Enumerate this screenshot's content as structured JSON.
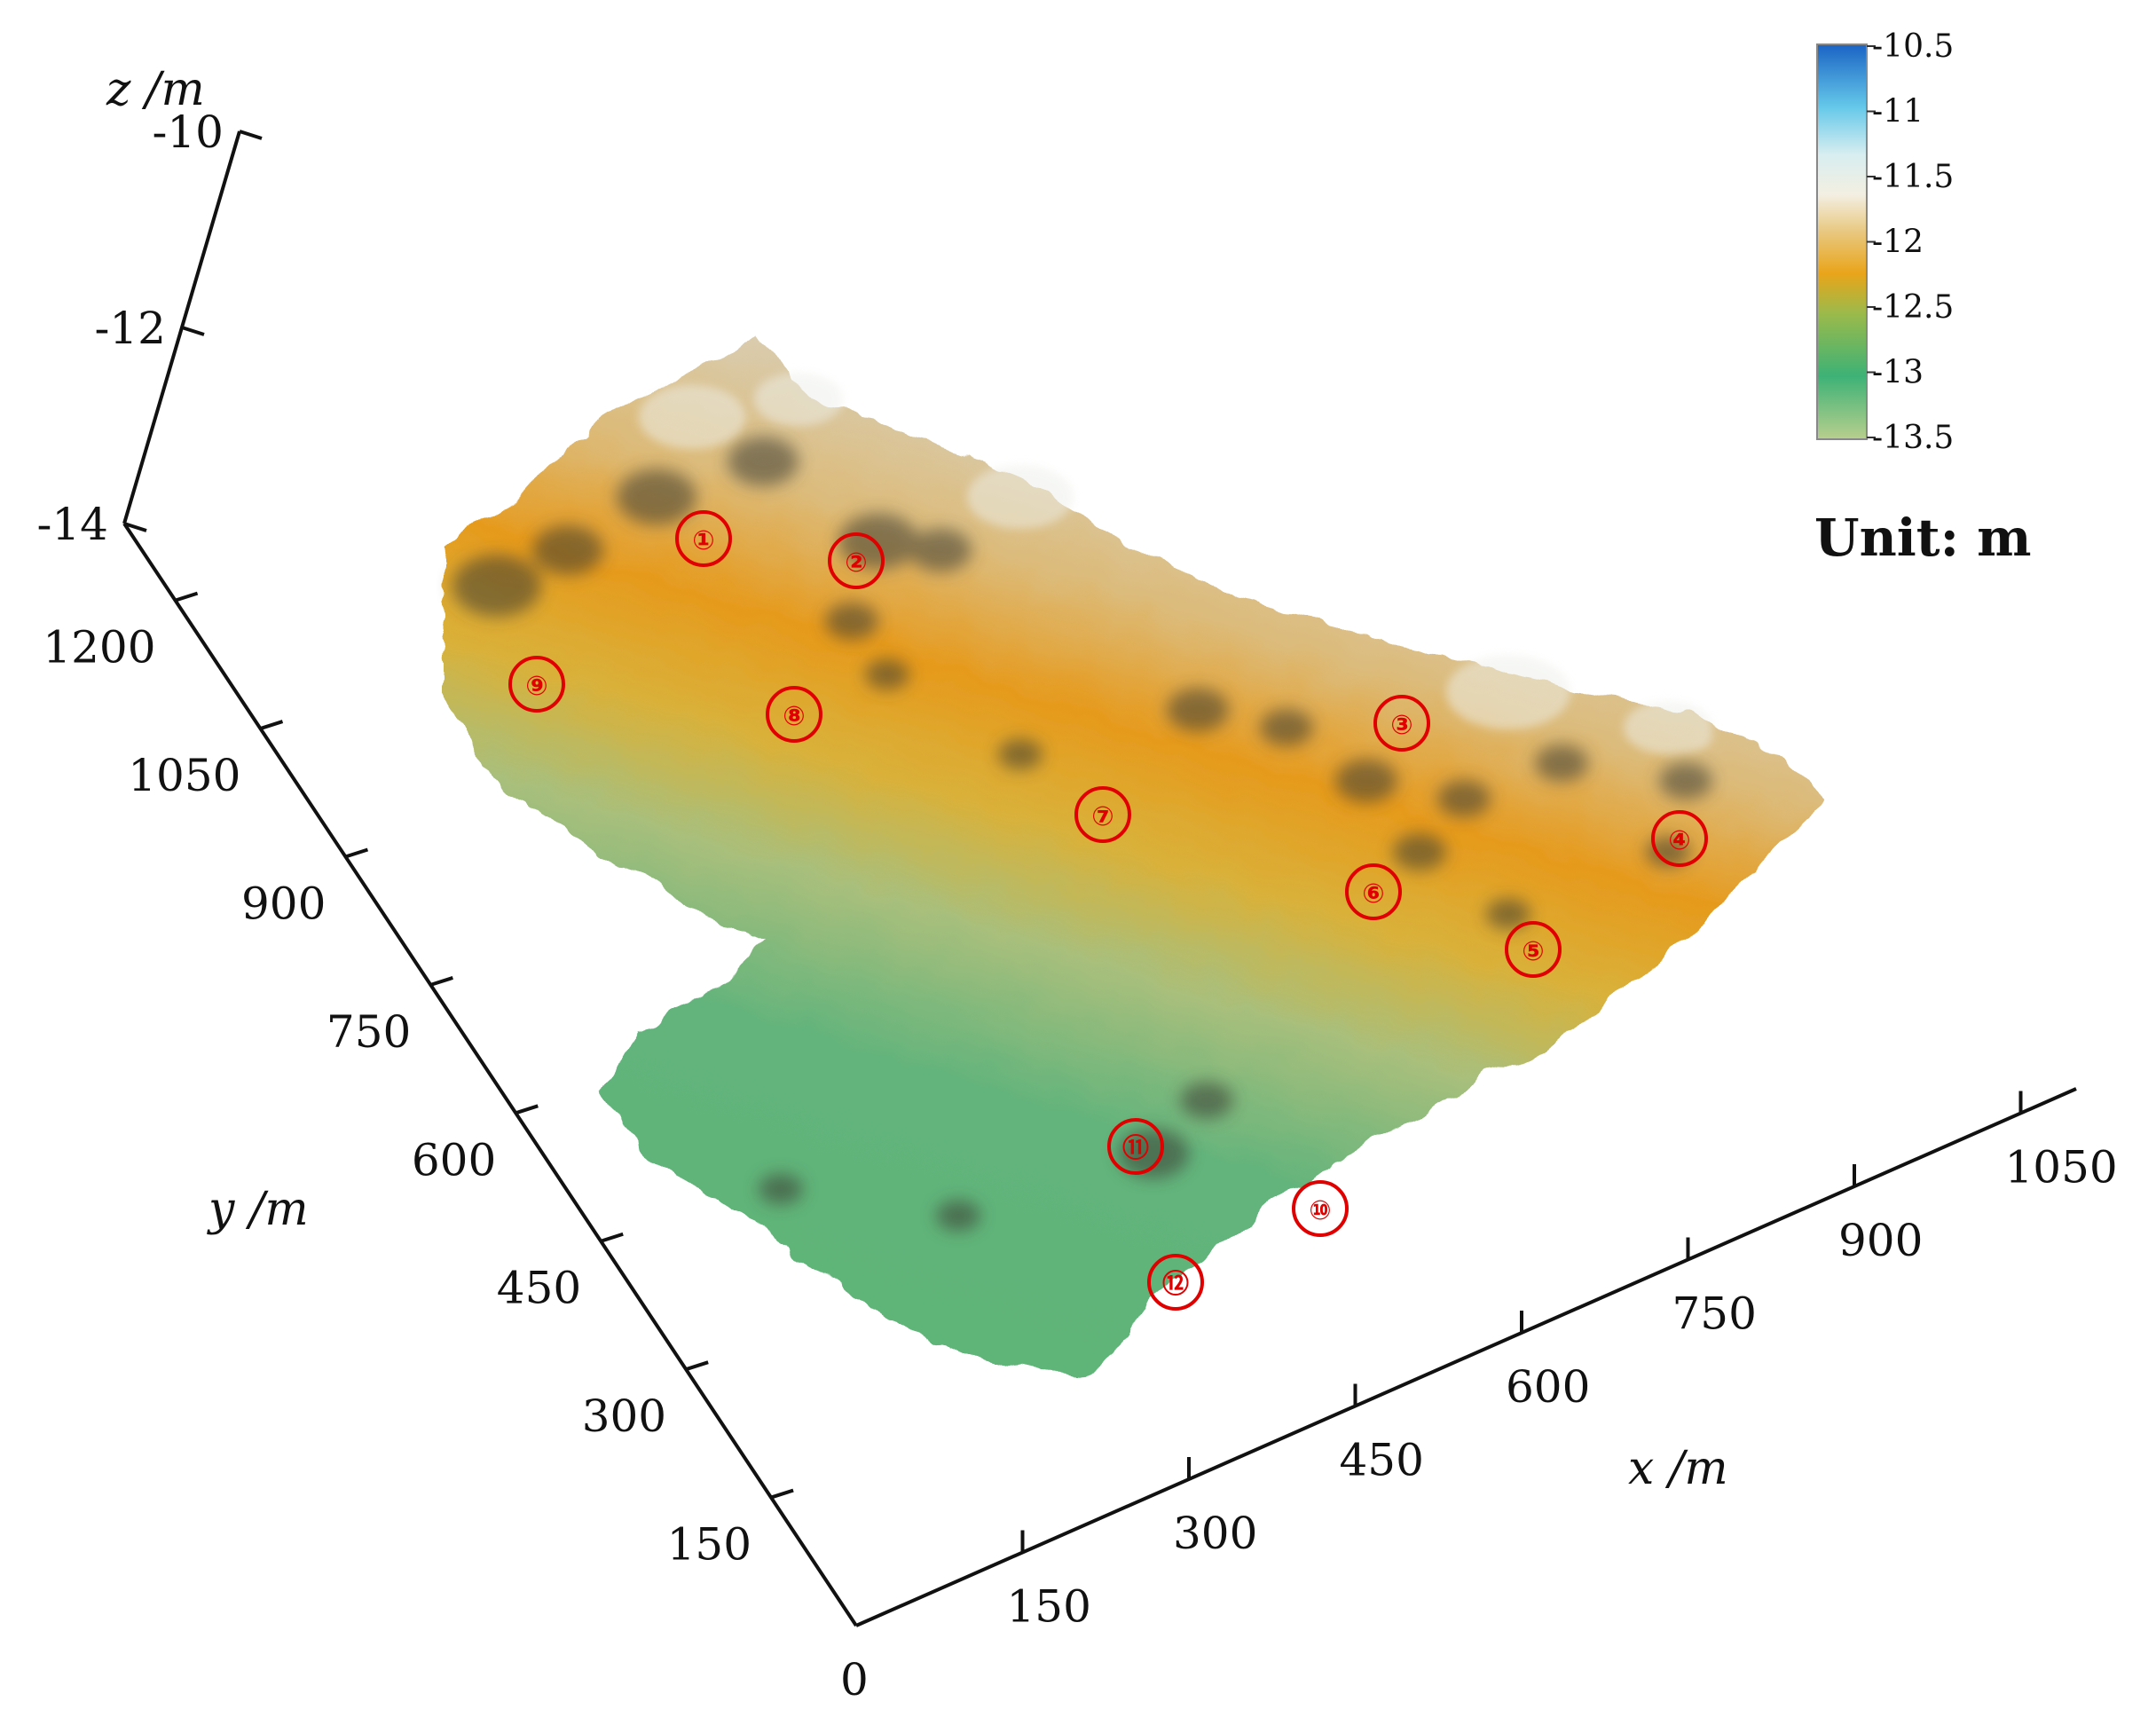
{
  "chart_data": {
    "type": "surface3d",
    "axes": {
      "x": {
        "label": "x /m",
        "ticks": [
          0,
          150,
          300,
          450,
          600,
          750,
          900,
          1050
        ]
      },
      "y": {
        "label": "y /m",
        "ticks": [
          150,
          300,
          450,
          600,
          750,
          900,
          1050,
          1200
        ]
      },
      "z": {
        "label": "z /m",
        "ticks": [
          -14,
          -12,
          -10
        ]
      }
    },
    "colorbar": {
      "ticks": [
        "-10.5",
        "-11",
        "-11.5",
        "-12",
        "-12.5",
        "-13",
        "-13.5"
      ],
      "range": [
        -13.5,
        -10.5
      ],
      "unit_label": "Unit: m",
      "colors": [
        "#aec98a",
        "#3fb074",
        "#e7b21a",
        "#f1efe0",
        "#8fd6ec",
        "#1f73c8"
      ]
    },
    "markers": [
      {
        "label": "①"
      },
      {
        "label": "②"
      },
      {
        "label": "③"
      },
      {
        "label": "④"
      },
      {
        "label": "⑤"
      },
      {
        "label": "⑥"
      },
      {
        "label": "⑦"
      },
      {
        "label": "⑧"
      },
      {
        "label": "⑨"
      },
      {
        "label": "⑩"
      },
      {
        "label": "⑪"
      },
      {
        "label": "⑫"
      }
    ]
  }
}
